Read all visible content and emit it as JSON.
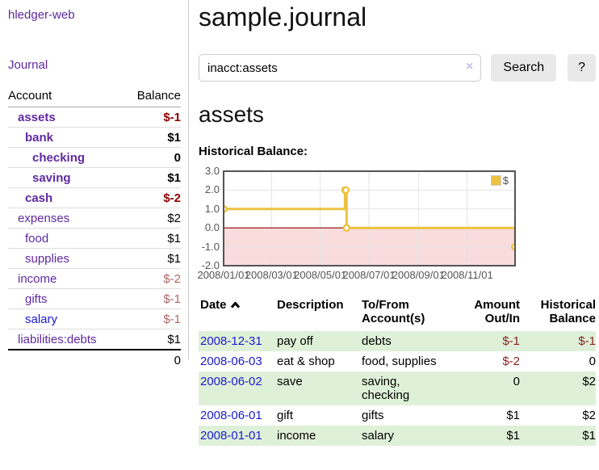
{
  "app": {
    "title": "hledger-web"
  },
  "sidebar": {
    "journal_label": "Journal",
    "accounts_table": {
      "headers": {
        "account": "Account",
        "balance": "Balance"
      },
      "rows": [
        {
          "name": "assets",
          "balance": "$-1",
          "depth": 1,
          "bold": true,
          "balance_style": "negative-strong"
        },
        {
          "name": "bank",
          "balance": "$1",
          "depth": 2,
          "bold": true,
          "balance_style": "normal"
        },
        {
          "name": "checking",
          "balance": "0",
          "depth": 3,
          "bold": true,
          "balance_style": "normal"
        },
        {
          "name": "saving",
          "balance": "$1",
          "depth": 3,
          "bold": true,
          "balance_style": "normal"
        },
        {
          "name": "cash",
          "balance": "$-2",
          "depth": 2,
          "bold": true,
          "balance_style": "negative-strong"
        },
        {
          "name": "expenses",
          "balance": "$2",
          "depth": 1,
          "bold": false,
          "balance_style": "normal"
        },
        {
          "name": "food",
          "balance": "$1",
          "depth": 2,
          "bold": false,
          "balance_style": "normal"
        },
        {
          "name": "supplies",
          "balance": "$1",
          "depth": 2,
          "bold": false,
          "balance_style": "normal"
        },
        {
          "name": "income",
          "balance": "$-2",
          "depth": 1,
          "bold": false,
          "balance_style": "negative-muted"
        },
        {
          "name": "gifts",
          "balance": "$-1",
          "depth": 2,
          "bold": false,
          "balance_style": "negative-muted"
        },
        {
          "name": "salary",
          "balance": "$-1",
          "depth": 2,
          "bold": false,
          "balance_style": "negative-muted",
          "link_color": "blue"
        },
        {
          "name": "liabilities:debts",
          "balance": "$1",
          "depth": 1,
          "bold": false,
          "balance_style": "normal"
        }
      ],
      "total": "0"
    }
  },
  "main": {
    "title": "sample.journal",
    "search": {
      "value": "inacct:assets",
      "clear_icon": "×",
      "search_button": "Search",
      "help_button": "?"
    },
    "account_heading": "assets",
    "chart_heading": "Historical Balance:"
  },
  "chart_data": {
    "type": "line",
    "title": "Historical Balance",
    "style": "step",
    "series": [
      {
        "name": "$",
        "color": "#EDC240",
        "points": [
          {
            "x": "2008-01-01",
            "y": 1
          },
          {
            "x": "2008-06-01",
            "y": 2
          },
          {
            "x": "2008-06-02",
            "y": 2
          },
          {
            "x": "2008-06-03",
            "y": 0
          },
          {
            "x": "2008-12-31",
            "y": -1
          }
        ]
      }
    ],
    "xlim": [
      "2008-01-01",
      "2008-12-31"
    ],
    "ylim": [
      -2.0,
      3.0
    ],
    "yticks": [
      3.0,
      2.0,
      1.0,
      0.0,
      -1.0,
      -2.0
    ],
    "xtick_dates": [
      "2008-01-01",
      "2008-03-01",
      "2008-05-01",
      "2008-07-01",
      "2008-09-01",
      "2008-11-01"
    ],
    "xtick_labels": [
      "2008/01/01",
      "2008/03/01",
      "2008/05/01",
      "2008/07/01",
      "2008/09/01",
      "2008/11/01"
    ],
    "grid": true,
    "negative_region_color": "#f9dcdc",
    "zero_line_color": "#8b0000",
    "grid_color": "#e3e3e3",
    "border_color": "#545454",
    "legend": {
      "position": "top-right",
      "label": "$"
    }
  },
  "register_table": {
    "headers": {
      "date": "Date",
      "description": "Description",
      "accounts": "To/From Account(s)",
      "amount": "Amount Out/In",
      "balance": "Historical Balance"
    },
    "rows": [
      {
        "date": "2008-12-31",
        "description": "pay off",
        "accounts": "debts",
        "amount": "$-1",
        "balance": "$-1"
      },
      {
        "date": "2008-06-03",
        "description": "eat & shop",
        "accounts": "food, supplies",
        "amount": "$-2",
        "balance": "0"
      },
      {
        "date": "2008-06-02",
        "description": "save",
        "accounts": "saving, checking",
        "amount": "0",
        "balance": "$2"
      },
      {
        "date": "2008-06-01",
        "description": "gift",
        "accounts": "gifts",
        "amount": "$1",
        "balance": "$2"
      },
      {
        "date": "2008-01-01",
        "description": "income",
        "accounts": "salary",
        "amount": "$1",
        "balance": "$1"
      }
    ]
  }
}
